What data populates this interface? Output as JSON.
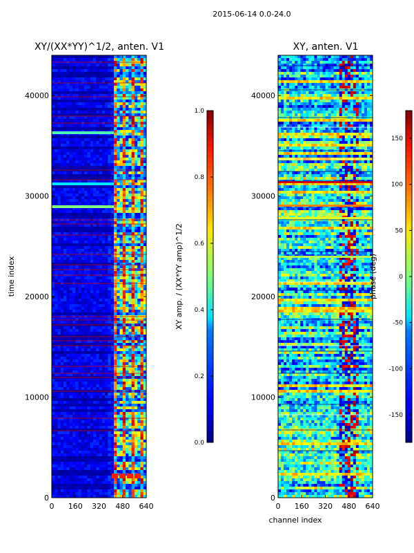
{
  "suptitle": "2015-06-14 0.0-24.0",
  "chart_data": [
    {
      "type": "heatmap",
      "title": "XY/(XX*YY)^1/2, anten. V1",
      "xlabel": "",
      "ylabel": "time index",
      "xlim": [
        0,
        640
      ],
      "ylim": [
        0,
        44000
      ],
      "xticks": [
        "0",
        "160",
        "320",
        "480",
        "640"
      ],
      "yticks": [
        "0",
        "10000",
        "20000",
        "30000",
        "40000"
      ],
      "colormap": "jet",
      "colorbar": {
        "label": "XY amp. / (XX*YY amp)^1/2",
        "range": [
          0.0,
          1.0
        ],
        "ticks": [
          "0.0",
          "0.2",
          "0.4",
          "0.6",
          "0.8",
          "1.0"
        ]
      },
      "flagged_rows_color": "#cc0000"
    },
    {
      "type": "heatmap",
      "title": "XY, anten. V1",
      "xlabel": "channel index",
      "ylabel": "",
      "xlim": [
        0,
        640
      ],
      "ylim": [
        0,
        44000
      ],
      "xticks": [
        "0",
        "160",
        "320",
        "480",
        "640"
      ],
      "yticks": [
        "0",
        "10000",
        "20000",
        "30000",
        "40000"
      ],
      "colormap": "jet",
      "colorbar": {
        "label": "phase (deg)",
        "range": [
          -180,
          180
        ],
        "ticks": [
          "-150",
          "-100",
          "-50",
          "0",
          "50",
          "100",
          "150"
        ]
      }
    }
  ]
}
